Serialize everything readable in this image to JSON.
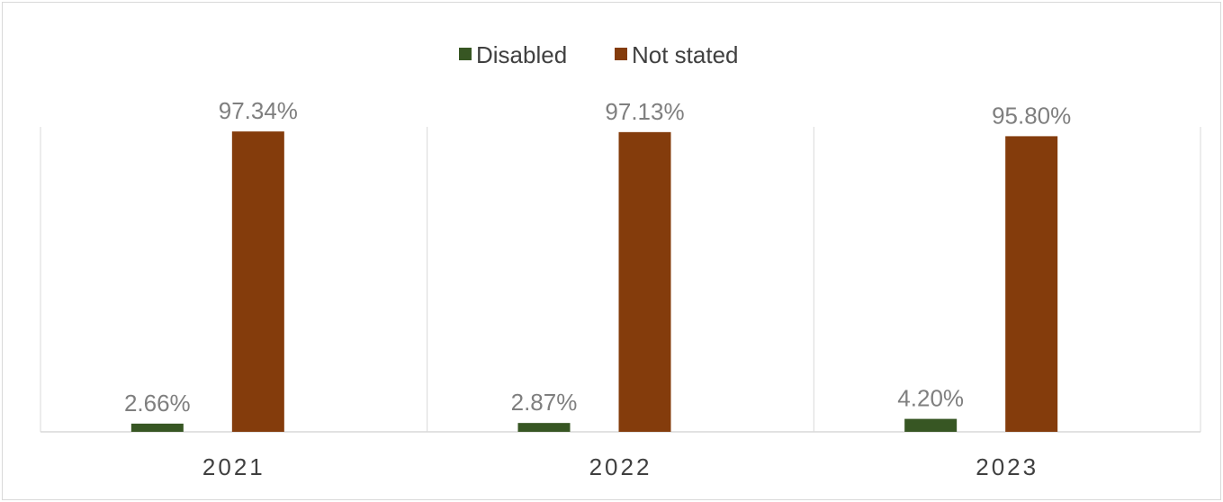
{
  "chart_data": {
    "type": "bar",
    "categories": [
      "2021",
      "2022",
      "2023"
    ],
    "series": [
      {
        "name": "Disabled",
        "values": [
          2.66,
          2.87,
          4.2
        ],
        "labels": [
          "2.66%",
          "2.87%",
          "4.20%"
        ],
        "color": "#375623"
      },
      {
        "name": "Not stated",
        "values": [
          97.34,
          97.13,
          95.8
        ],
        "labels": [
          "97.34%",
          "97.13%",
          "95.80%"
        ],
        "color": "#843C0C"
      }
    ],
    "title": "",
    "xlabel": "",
    "ylabel": "",
    "ylim": [
      0,
      100
    ],
    "value_unit": "%",
    "legend_position": "top-center",
    "grid": "vertical category separators",
    "axis_color": "#d9d9d9"
  }
}
